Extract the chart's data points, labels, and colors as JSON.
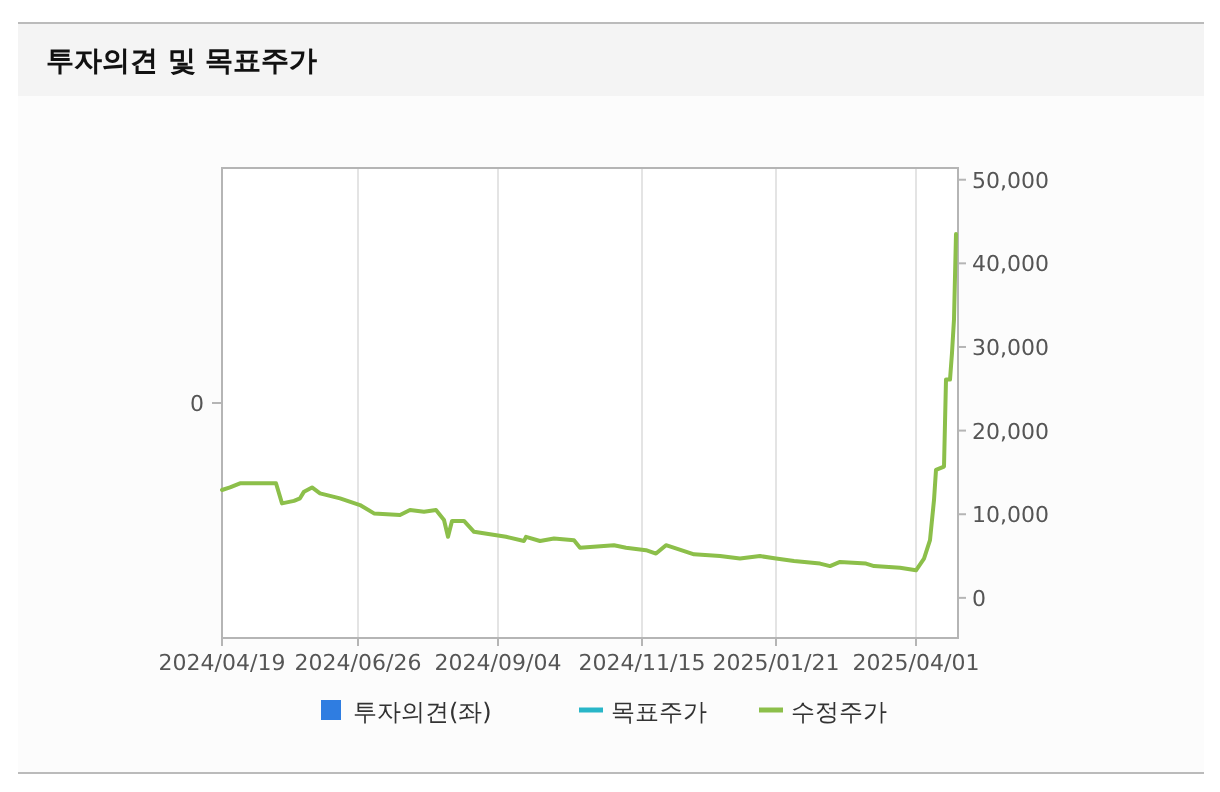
{
  "chart_data": {
    "type": "line",
    "title": "투자의견 및 목표주가",
    "xlim": [
      "2024-04-19",
      "2025-04-22"
    ],
    "xticks": [
      {
        "value": "2024-04-19",
        "label": "2024/04/19"
      },
      {
        "value": "2024-06-26",
        "label": "2024/06/26"
      },
      {
        "value": "2024-09-04",
        "label": "2024/09/04"
      },
      {
        "value": "2024-11-15",
        "label": "2024/11/15"
      },
      {
        "value": "2025-01-21",
        "label": "2025/01/21"
      },
      {
        "value": "2025-04-01",
        "label": "2025/04/01"
      }
    ],
    "annotations": [
      "0"
    ],
    "y2lim": [
      -4800,
      51400
    ],
    "y2ticks": [
      0,
      {
        "value": 10000,
        "label": "10,000"
      },
      {
        "value": 20000,
        "label": "20,000"
      },
      {
        "value": 30000,
        "label": "30,000"
      },
      {
        "value": 40000,
        "label": "40,000"
      },
      {
        "value": 50000,
        "label": "50,000"
      }
    ],
    "grid": "x",
    "legend": "bottom",
    "series": [
      {
        "name": "투자의견(좌)",
        "type": "bar",
        "color": "#2f7de1"
      },
      {
        "name": "목표주가",
        "type": "line",
        "axis": "y2",
        "color": "#29b6c8"
      },
      {
        "name": "수정주가",
        "axis": "y2",
        "color": "#8cbf4a",
        "x": [
          "2024-04-19",
          "2024-04-23",
          "2024-04-28",
          "2024-05-16",
          "2024-05-19",
          "2024-05-25",
          "2024-05-28",
          "2024-05-30",
          "2024-06-03",
          "2024-06-07",
          "2024-06-17",
          "2024-06-27",
          "2024-07-04",
          "2024-07-17",
          "2024-07-22",
          "2024-07-29",
          "2024-08-04",
          "2024-08-08",
          "2024-08-10",
          "2024-08-12",
          "2024-08-18",
          "2024-08-23",
          "2024-09-08",
          "2024-09-17",
          "2024-09-18",
          "2024-09-25",
          "2024-10-02",
          "2024-10-12",
          "2024-10-15",
          "2024-11-01",
          "2024-11-07",
          "2024-11-17",
          "2024-11-22",
          "2024-11-27",
          "2024-12-11",
          "2024-12-24",
          "2025-01-03",
          "2025-01-13",
          "2025-01-21",
          "2025-01-30",
          "2025-02-12",
          "2025-02-17",
          "2025-02-22",
          "2025-03-07",
          "2025-03-11",
          "2025-03-24",
          "2025-04-01",
          "2025-04-05",
          "2025-04-08",
          "2025-04-10",
          "2025-04-11",
          "2025-04-15",
          "2025-04-16",
          "2025-04-18",
          "2025-04-19",
          "2025-04-20",
          "2025-04-21"
        ],
        "values": [
          12900,
          13200,
          13700,
          13700,
          11300,
          11600,
          11900,
          12700,
          13200,
          12500,
          11900,
          11100,
          10100,
          9900,
          10500,
          10300,
          10500,
          9300,
          7300,
          9200,
          9200,
          7900,
          7300,
          6800,
          7300,
          6800,
          7100,
          6900,
          6000,
          6300,
          6000,
          5700,
          5300,
          6300,
          5200,
          5000,
          4700,
          5000,
          4700,
          4400,
          4100,
          3800,
          4300,
          4100,
          3800,
          3600,
          3300,
          4700,
          6900,
          11700,
          15300,
          15700,
          26100,
          26100,
          29300,
          33300,
          43500
        ]
      }
    ]
  }
}
